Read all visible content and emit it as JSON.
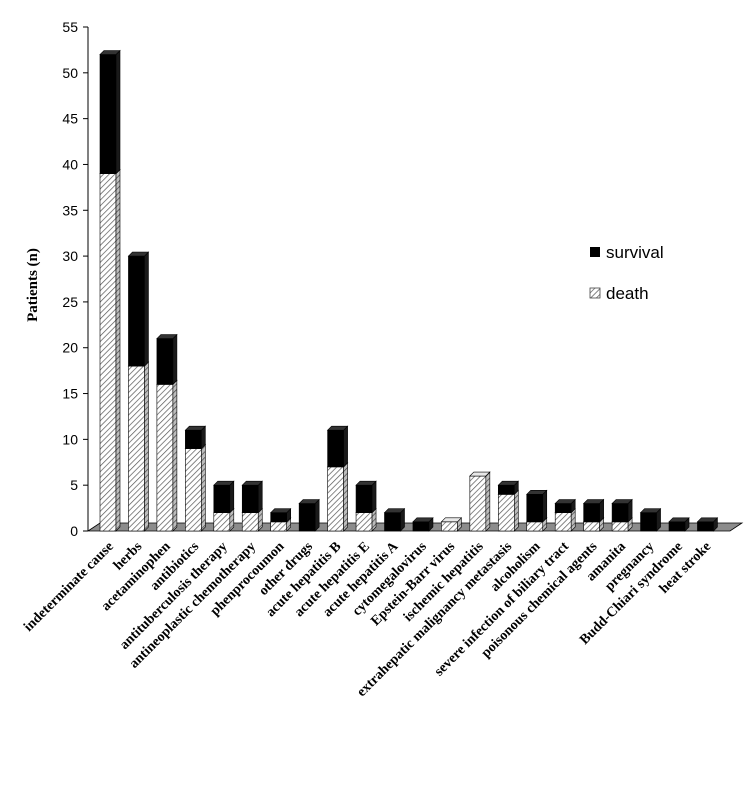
{
  "chart_data": {
    "type": "bar",
    "stacked": true,
    "three_d": true,
    "ylabel": "Patients (n)",
    "xlabel": "",
    "ylim": [
      0,
      55
    ],
    "yticks": [
      0,
      5,
      10,
      15,
      20,
      25,
      30,
      35,
      40,
      45,
      50,
      55
    ],
    "grid": false,
    "legend_position": "right",
    "categories": [
      "indeterminate cause",
      "herbs",
      "acetaminophen",
      "antibiotics",
      "antituberculosis therapy",
      "antineoplastic chemotherapy",
      "phenprocoumon",
      "other drugs",
      "acute hepatitis B",
      "acute hepatitis E",
      "acute hepatitis A",
      "cytomegalovirus",
      "Epstein-Barr virus",
      "ischemic hepatitis",
      "extrahepatic malignancy metastasis",
      "alcoholism",
      "severe infection of biliary tract",
      "poisonous chemical agents",
      "amanita",
      "pregnancy",
      "Budd-Chiari syndrome",
      "heat stroke"
    ],
    "series": [
      {
        "name": "death",
        "color": "#d9d9d9",
        "pattern": "hatched",
        "values": [
          39,
          18,
          16,
          9,
          2,
          2,
          1,
          0,
          7,
          2,
          0,
          0,
          1,
          6,
          4,
          1,
          2,
          1,
          1,
          0,
          0,
          0
        ]
      },
      {
        "name": "survival",
        "color": "#000000",
        "pattern": "solid",
        "values": [
          13,
          12,
          5,
          2,
          3,
          3,
          1,
          3,
          4,
          3,
          2,
          1,
          0,
          0,
          1,
          3,
          1,
          2,
          2,
          2,
          1,
          1
        ]
      }
    ],
    "legend": [
      {
        "label": "survival",
        "series": "survival"
      },
      {
        "label": "death",
        "series": "death"
      }
    ]
  }
}
